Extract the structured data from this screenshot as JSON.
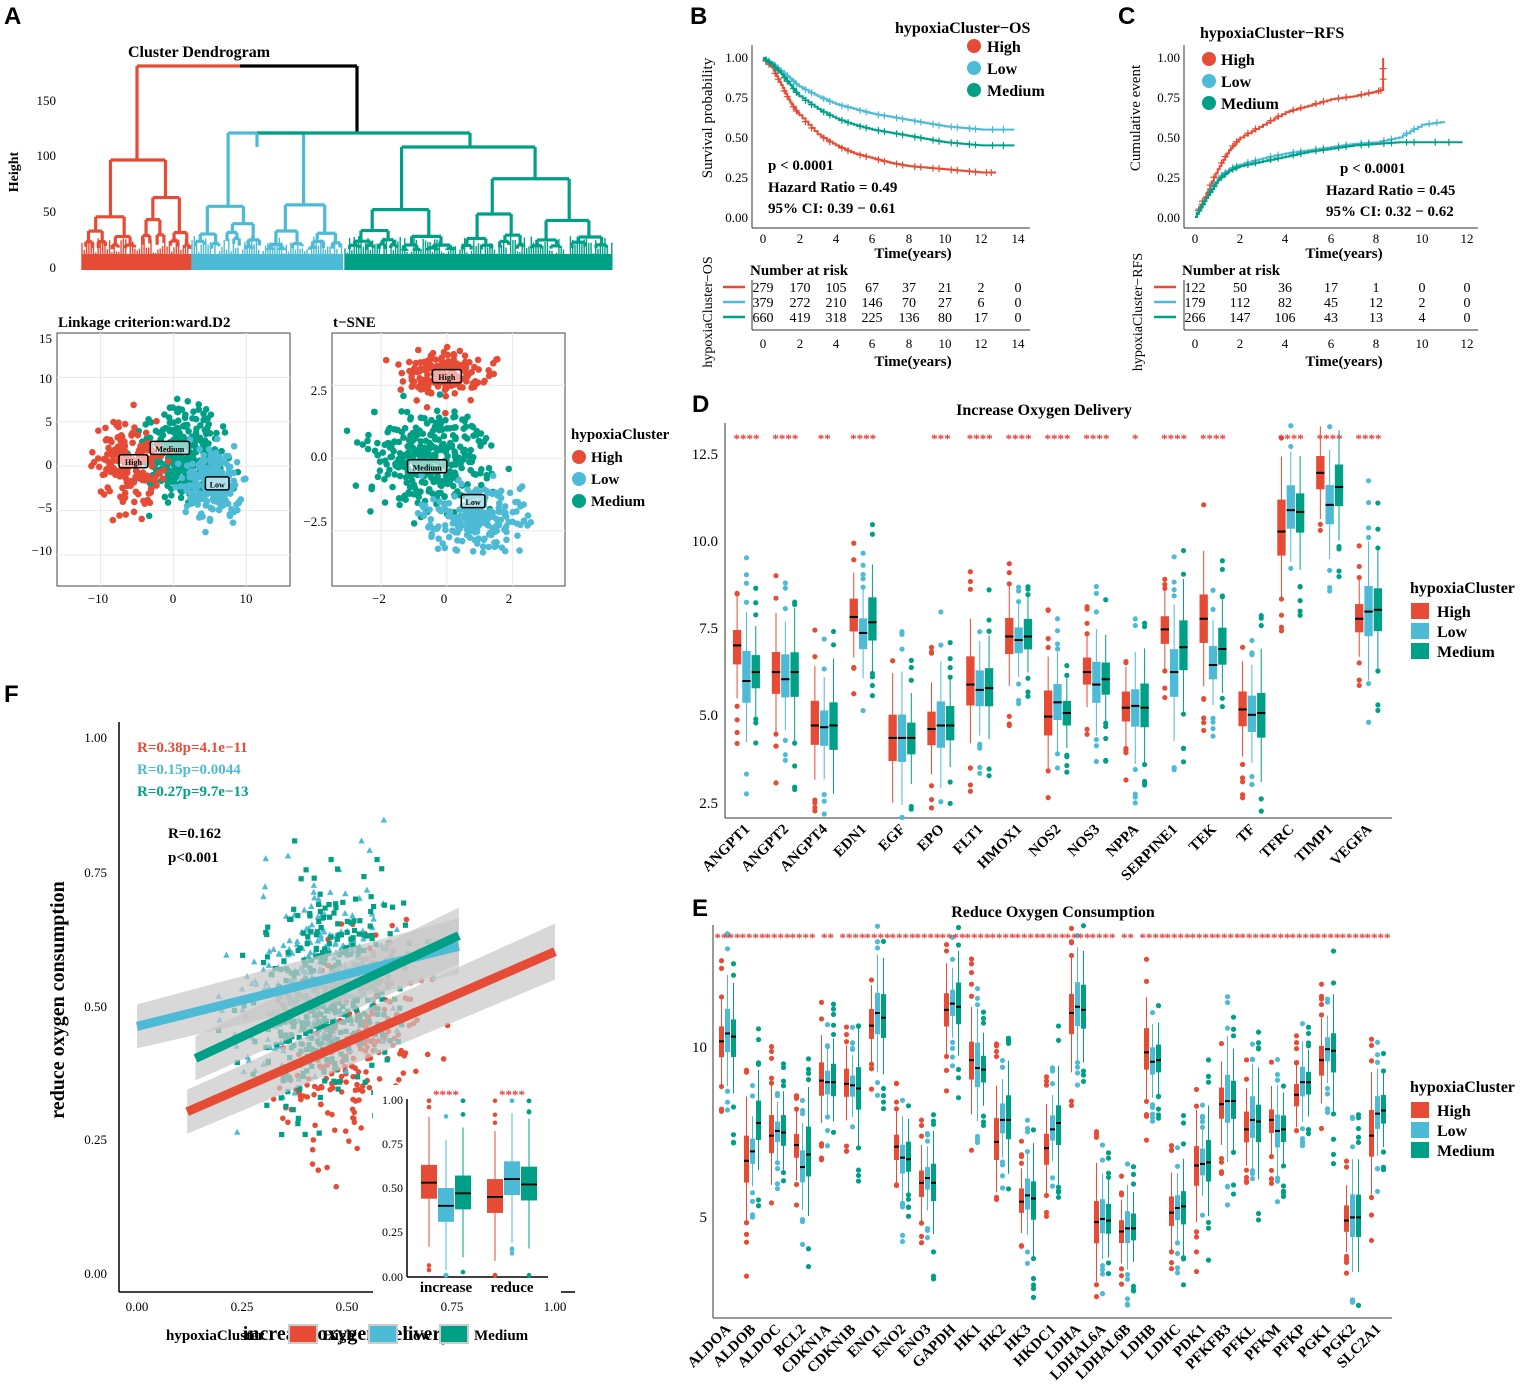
{
  "figure": {
    "panel_labels": [
      "A",
      "B",
      "C",
      "D",
      "E",
      "F"
    ],
    "colors": {
      "High": "#e64b35",
      "Low": "#4dbbd5",
      "Medium": "#00a087",
      "black": "#000000",
      "grid": "#ebebeb",
      "ribbon": "#c8c8c8"
    }
  },
  "chart_data": [
    {
      "id": "A_dendrogram",
      "type": "dendrogram",
      "title": "Cluster Dendrogram",
      "ylabel": "Height",
      "yticks": [
        "150",
        "100",
        "50",
        "0"
      ],
      "ylim": [
        0,
        170
      ],
      "clusters": [
        "High",
        "Low",
        "Medium"
      ]
    },
    {
      "id": "A_scatter_ward",
      "type": "scatter",
      "title": "Linkage criterion:ward.D2",
      "xticks": [
        "−10",
        "0",
        "10"
      ],
      "yticks": [
        "15",
        "10",
        "5",
        "0",
        "−5",
        "−10"
      ],
      "xlim": [
        -16,
        16
      ],
      "ylim": [
        -13.5,
        15
      ],
      "centroid_labels": [
        {
          "label": "High",
          "x": -5.5,
          "y": 0.5
        },
        {
          "label": "Medium",
          "x": -0.5,
          "y": 2
        },
        {
          "label": "Low",
          "x": 6,
          "y": -2
        }
      ]
    },
    {
      "id": "A_tsne",
      "type": "scatter",
      "title": "t−SNE",
      "xticks": [
        "−2",
        "0",
        "2"
      ],
      "yticks": [
        "2.5",
        "0.0",
        "−2.5"
      ],
      "xlim": [
        -3.5,
        3.6
      ],
      "ylim": [
        -4.4,
        4.3
      ],
      "centroid_labels": [
        {
          "label": "High",
          "x": 0,
          "y": 2.8
        },
        {
          "label": "Medium",
          "x": -0.6,
          "y": -0.3
        },
        {
          "label": "Low",
          "x": 0.8,
          "y": -1.5
        }
      ],
      "legend": {
        "title": "hypoxiaCluster",
        "entries": [
          "High",
          "Low",
          "Medium"
        ]
      }
    },
    {
      "id": "B_km_os",
      "type": "line",
      "subtype": "kaplan-meier",
      "legend_title": "hypoxiaCluster−OS",
      "legend": [
        "High",
        "Low",
        "Medium"
      ],
      "ylabel": "Survival probability",
      "xlabel": "Time(years)",
      "xticks": [
        "0",
        "2",
        "4",
        "6",
        "8",
        "10",
        "12",
        "14"
      ],
      "xlim": [
        0,
        14
      ],
      "yticks": [
        "1.00",
        "0.75",
        "0.50",
        "0.25",
        "0.00"
      ],
      "ylim": [
        0,
        1
      ],
      "series": [
        {
          "name": "High",
          "x": [
            0,
            0.5,
            1,
            1.5,
            2,
            3,
            4,
            5,
            6,
            7,
            8,
            9,
            10,
            11,
            12,
            12.8
          ],
          "y": [
            1,
            0.94,
            0.83,
            0.72,
            0.64,
            0.52,
            0.45,
            0.4,
            0.37,
            0.34,
            0.32,
            0.31,
            0.3,
            0.29,
            0.28,
            0.28
          ]
        },
        {
          "name": "Low",
          "x": [
            0,
            0.5,
            1,
            1.5,
            2,
            3,
            4,
            5,
            6,
            7,
            8,
            9,
            10,
            11,
            12,
            13.8
          ],
          "y": [
            1,
            0.97,
            0.92,
            0.87,
            0.82,
            0.76,
            0.71,
            0.68,
            0.65,
            0.63,
            0.61,
            0.59,
            0.57,
            0.56,
            0.55,
            0.55
          ]
        },
        {
          "name": "Medium",
          "x": [
            0,
            0.5,
            1,
            1.5,
            2,
            3,
            4,
            5,
            6,
            7,
            8,
            9,
            10,
            11,
            12,
            13.8
          ],
          "y": [
            1,
            0.96,
            0.9,
            0.83,
            0.76,
            0.68,
            0.62,
            0.58,
            0.55,
            0.53,
            0.51,
            0.49,
            0.47,
            0.46,
            0.45,
            0.45
          ]
        }
      ],
      "annotations": [
        "p < 0.0001",
        "Hazard Ratio = 0.49",
        "95% CI: 0.39 − 0.61"
      ],
      "risk_table": {
        "title": "Number at risk",
        "ylabel": "hypoxiaCluster−OS",
        "times": [
          "0",
          "2",
          "4",
          "6",
          "8",
          "10",
          "12",
          "14"
        ],
        "rows": [
          {
            "name": "High",
            "values": [
              "279",
              "170",
              "105",
              "67",
              "37",
              "21",
              "2",
              "0"
            ]
          },
          {
            "name": "Low",
            "values": [
              "379",
              "272",
              "210",
              "146",
              "70",
              "27",
              "6",
              "0"
            ]
          },
          {
            "name": "Medium",
            "values": [
              "660",
              "419",
              "318",
              "225",
              "136",
              "80",
              "17",
              "0"
            ]
          }
        ]
      }
    },
    {
      "id": "C_cuminc_rfs",
      "type": "line",
      "subtype": "cumulative-incidence",
      "legend_title": "hypoxiaCluster−RFS",
      "legend": [
        "High",
        "Low",
        "Medium"
      ],
      "ylabel": "Cumulative event",
      "xlabel": "Time(years)",
      "xticks": [
        "0",
        "2",
        "4",
        "6",
        "8",
        "10",
        "12"
      ],
      "xlim": [
        0,
        12
      ],
      "yticks": [
        "1.00",
        "0.75",
        "0.50",
        "0.25",
        "0.00"
      ],
      "ylim": [
        0,
        1
      ],
      "series": [
        {
          "name": "High",
          "x": [
            0,
            0.5,
            1,
            1.5,
            2,
            3,
            4,
            5,
            6,
            7,
            8,
            8.3,
            8.3
          ],
          "y": [
            0,
            0.15,
            0.3,
            0.42,
            0.5,
            0.58,
            0.66,
            0.7,
            0.74,
            0.76,
            0.79,
            0.8,
            1.0
          ]
        },
        {
          "name": "Low",
          "x": [
            0,
            0.5,
            1,
            1.5,
            2,
            3,
            4,
            5,
            6,
            7,
            8,
            9,
            10,
            11
          ],
          "y": [
            0,
            0.12,
            0.24,
            0.3,
            0.33,
            0.37,
            0.4,
            0.42,
            0.44,
            0.46,
            0.47,
            0.5,
            0.58,
            0.6
          ]
        },
        {
          "name": "Medium",
          "x": [
            0,
            0.5,
            1,
            1.5,
            2,
            3,
            4,
            5,
            6,
            7,
            8,
            9,
            10,
            11.8
          ],
          "y": [
            0,
            0.12,
            0.23,
            0.29,
            0.32,
            0.35,
            0.38,
            0.41,
            0.43,
            0.45,
            0.46,
            0.47,
            0.47,
            0.47
          ]
        }
      ],
      "annotations": [
        "p < 0.0001",
        "Hazard Ratio = 0.45",
        "95% CI: 0.32 − 0.62"
      ],
      "risk_table": {
        "title": "Number at risk",
        "ylabel": "hypoxiaCluster−RFS",
        "times": [
          "0",
          "2",
          "4",
          "6",
          "8",
          "10",
          "12"
        ],
        "rows": [
          {
            "name": "High",
            "values": [
              "122",
              "50",
              "36",
              "17",
              "1",
              "0",
              "0"
            ]
          },
          {
            "name": "Low",
            "values": [
              "179",
              "112",
              "82",
              "45",
              "12",
              "2",
              "0"
            ]
          },
          {
            "name": "Medium",
            "values": [
              "266",
              "147",
              "106",
              "43",
              "13",
              "4",
              "0"
            ]
          }
        ]
      }
    },
    {
      "id": "D_box",
      "type": "box",
      "title": "Increase Oxygen Delivery",
      "yticks": [
        "12.5",
        "10.0",
        "7.5",
        "5.0",
        "2.5"
      ],
      "ylim": [
        1.9,
        13.0
      ],
      "legend": {
        "title": "hypoxiaCluster",
        "entries": [
          "High",
          "Low",
          "Medium"
        ]
      },
      "categories": [
        "ANGPT1",
        "ANGPT2",
        "ANGPT4",
        "EDN1",
        "EGF",
        "EPO",
        "FLT1",
        "HMOX1",
        "NOS2",
        "NOS3",
        "NPPA",
        "SERPINE1",
        "TEK",
        "TF",
        "TFRC",
        "TIMP1",
        "VEGFA"
      ],
      "significance": [
        "****",
        "****",
        "**",
        "****",
        "",
        "***",
        "****",
        "****",
        "****",
        "****",
        "*",
        "****",
        "****",
        "",
        "****",
        "****",
        "****"
      ],
      "medians": {
        "High": [
          6.75,
          6.0,
          4.5,
          7.55,
          4.15,
          4.4,
          5.65,
          7.0,
          4.75,
          6.0,
          5.0,
          7.2,
          7.5,
          4.95,
          9.95,
          11.6,
          7.5
        ],
        "Low": [
          5.75,
          5.8,
          4.45,
          7.1,
          4.15,
          4.5,
          5.5,
          6.9,
          5.15,
          5.65,
          5.05,
          6.0,
          6.2,
          4.8,
          10.55,
          10.7,
          7.7
        ],
        "Medium": [
          6.0,
          6.0,
          4.5,
          7.4,
          4.15,
          4.5,
          5.55,
          7.0,
          4.85,
          5.8,
          5.0,
          6.7,
          6.65,
          4.85,
          10.5,
          11.2,
          7.75
        ]
      }
    },
    {
      "id": "E_box",
      "type": "box",
      "title": "Reduce Oxygen Consumption",
      "yticks": [
        "10",
        "5"
      ],
      "ylim": [
        1.3,
        13.8
      ],
      "legend": {
        "title": "hypoxiaCluster",
        "entries": [
          "High",
          "Low",
          "Medium"
        ]
      },
      "categories": [
        "ALDOA",
        "ALDOB",
        "ALDOC",
        "BCL2",
        "CDKN1A",
        "CDKN1B",
        "ENO1",
        "ENO2",
        "ENO3",
        "GAPDH",
        "HK1",
        "HK2",
        "HK3",
        "HKDC1",
        "LDHA",
        "LDHAL6A",
        "LDHAL6B",
        "LDHB",
        "LDHC",
        "PDK1",
        "PFKFB3",
        "PFKL",
        "PFKM",
        "PFKP",
        "PGK1",
        "PGK2",
        "SLC2A1"
      ],
      "significance": [
        "****",
        "****",
        "****",
        "****",
        "**",
        "****",
        "****",
        "****",
        "****",
        "****",
        "****",
        "****",
        "****",
        "****",
        "****",
        "****",
        "**",
        "****",
        "****",
        "****",
        "****",
        "****",
        "****",
        "****",
        "****",
        "****",
        "****"
      ],
      "medians": {
        "High": [
          10.1,
          6.3,
          7.1,
          6.8,
          8.85,
          8.75,
          10.6,
          6.75,
          5.6,
          11.1,
          9.5,
          6.9,
          5.0,
          6.7,
          11.0,
          4.35,
          4.05,
          9.75,
          4.65,
          6.15,
          8.1,
          7.3,
          7.6,
          8.4,
          9.5,
          4.4,
          7.1
        ],
        "Low": [
          10.35,
          6.6,
          7.25,
          6.1,
          8.8,
          8.7,
          11.0,
          6.4,
          5.75,
          11.3,
          9.25,
          7.6,
          5.2,
          7.3,
          11.2,
          4.45,
          4.15,
          9.45,
          4.8,
          6.2,
          8.2,
          7.6,
          7.25,
          8.8,
          9.85,
          4.5,
          7.8
        ],
        "Medium": [
          10.25,
          7.5,
          7.2,
          6.5,
          8.8,
          8.6,
          10.85,
          6.35,
          5.6,
          11.2,
          9.2,
          7.6,
          5.1,
          7.5,
          11.1,
          4.4,
          4.15,
          9.5,
          4.85,
          6.25,
          8.2,
          7.55,
          7.3,
          8.8,
          9.8,
          4.5,
          7.9
        ]
      }
    },
    {
      "id": "F_scatter",
      "type": "scatter",
      "subtype": "regression",
      "xlabel": "increase oxygen delivery",
      "ylabel": "reduce oxygen consumption",
      "xticks": [
        "0.00",
        "0.25",
        "0.50",
        "0.75",
        "1.00"
      ],
      "xlim": [
        -0.03,
        1.03
      ],
      "yticks": [
        "1.00",
        "0.75",
        "0.50",
        "0.25",
        "0.00"
      ],
      "ylim": [
        -0.01,
        1.02
      ],
      "stats_text": [
        "R=0.38p=4.1e−11",
        "R=0.15p=0.0044",
        "R=0.27p=9.7e−13"
      ],
      "overall": [
        "R=0.162",
        "p<0.001"
      ],
      "fit_lines": [
        {
          "name": "High",
          "x": [
            0.12,
            1.0
          ],
          "y": [
            0.3,
            0.6
          ]
        },
        {
          "name": "Low",
          "x": [
            0.0,
            0.77
          ],
          "y": [
            0.46,
            0.61
          ]
        },
        {
          "name": "Medium",
          "x": [
            0.14,
            0.77
          ],
          "y": [
            0.4,
            0.63
          ]
        }
      ],
      "legend": {
        "title": "hypoxiaCluster",
        "entries": [
          "High",
          "Low",
          "Medium"
        ]
      },
      "inset": {
        "type": "box",
        "categories": [
          "increase",
          "reduce"
        ],
        "yticks": [
          "1.00",
          "0.75",
          "0.50",
          "0.25",
          "0.00"
        ],
        "ylim": [
          0,
          1
        ],
        "significance": [
          "****",
          "****"
        ],
        "medians": {
          "High": [
            0.53,
            0.45
          ],
          "Low": [
            0.4,
            0.55
          ],
          "Medium": [
            0.47,
            0.52
          ]
        }
      }
    }
  ]
}
